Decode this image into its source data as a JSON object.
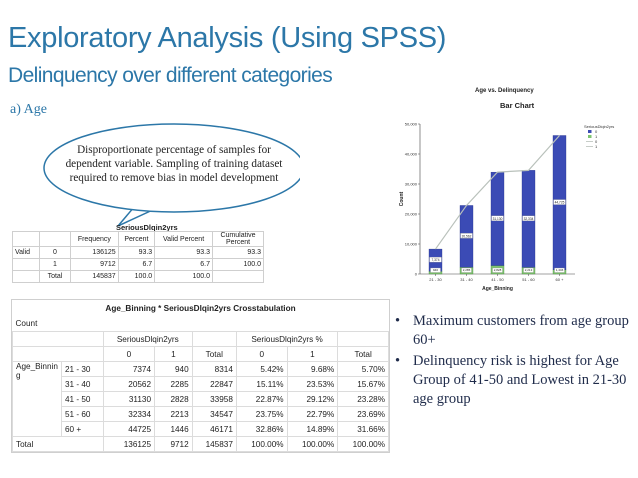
{
  "title": "Exploratory Analysis (Using SPSS)",
  "subtitle": "Delinquency over different categories",
  "section": "a) Age",
  "callout": "Disproportionate percentage of samples for dependent variable. Sampling of training dataset required to remove bias in model development",
  "freq_table": {
    "title": "SeriousDlqin2yrs",
    "headers": [
      "Frequency",
      "Percent",
      "Valid Percent",
      "Cumulative Percent"
    ],
    "valid_label": "Valid",
    "rows": [
      {
        "label": "0",
        "freq": "136125",
        "pct": "93.3",
        "valid": "93.3",
        "cum": "93.3"
      },
      {
        "label": "1",
        "freq": "9712",
        "pct": "6.7",
        "valid": "6.7",
        "cum": "100.0"
      },
      {
        "label": "Total",
        "freq": "145837",
        "pct": "100.0",
        "valid": "100.0",
        "cum": ""
      }
    ]
  },
  "crosstab": {
    "title": "Age_Binning * SeriousDlqin2yrs Crosstabulation",
    "count_label": "Count",
    "group1": "SeriousDlqin2yrs",
    "group2": "SeriousDlqin2yrs %",
    "subheaders": [
      "0",
      "1",
      "Total",
      "0",
      "1",
      "Total"
    ],
    "row_var": "Age_Binning",
    "rows": [
      {
        "bin": "21 - 30",
        "v": [
          "7374",
          "940",
          "8314",
          "5.42%",
          "9.68%",
          "5.70%"
        ]
      },
      {
        "bin": "31 - 40",
        "v": [
          "20562",
          "2285",
          "22847",
          "15.11%",
          "23.53%",
          "15.67%"
        ]
      },
      {
        "bin": "41 - 50",
        "v": [
          "31130",
          "2828",
          "33958",
          "22.87%",
          "29.12%",
          "23.28%"
        ]
      },
      {
        "bin": "51 - 60",
        "v": [
          "32334",
          "2213",
          "34547",
          "23.75%",
          "22.79%",
          "23.69%"
        ]
      },
      {
        "bin": "60 +",
        "v": [
          "44725",
          "1446",
          "46171",
          "32.86%",
          "14.89%",
          "31.66%"
        ]
      }
    ],
    "total_label": "Total",
    "total": [
      "136125",
      "9712",
      "145837",
      "100.00%",
      "100.00%",
      "100.00%"
    ]
  },
  "bullets": [
    "Maximum customers from age group 60+",
    "Delinquency risk is highest for Age Group of 41-50  and Lowest in 21-30 age group"
  ],
  "colors": {
    "accent": "#2c77a8",
    "bar_blue": "#3b4bb5",
    "bar_green": "#7ec46f",
    "line": "#b9c1bb"
  },
  "chart_data": {
    "type": "bar",
    "title": "Age vs. Delinquency",
    "subtitle": "Bar Chart",
    "xlabel": "Age_Binning",
    "ylabel": "Count",
    "categories": [
      "21 - 30",
      "31 - 40",
      "41 - 50",
      "51 - 60",
      "60 +"
    ],
    "series": [
      {
        "name": "0",
        "values": [
          7374,
          20562,
          31130,
          32334,
          44725
        ]
      },
      {
        "name": "1",
        "values": [
          940,
          2285,
          2828,
          2213,
          1446
        ]
      }
    ],
    "ylim": [
      0,
      50000
    ],
    "yticks": [
      "0",
      "10,000",
      "20,000",
      "30,000",
      "40,000",
      "50,000"
    ],
    "legend_title": "SeriousDlqin2yrs",
    "legend_entries": [
      "0",
      "1",
      "0",
      "1"
    ],
    "data_labels_0": [
      "7,374",
      "20,562",
      "31,130",
      "32,334",
      "44,725"
    ],
    "data_labels_1": [
      "940",
      "2,285",
      "2,828",
      "2,213",
      "1,446"
    ],
    "legend_placement": "right",
    "grid": false
  }
}
